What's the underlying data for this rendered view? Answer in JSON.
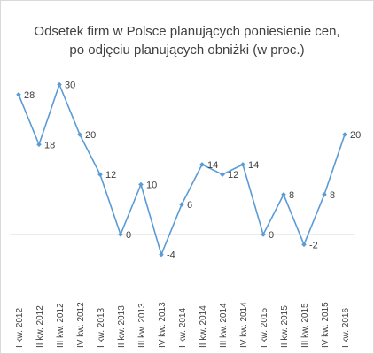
{
  "chart_data": {
    "type": "line",
    "title": "Odsetek firm w Polsce planujących poniesienie cen,",
    "subtitle": "po odjęciu planujących obniżki (w proc.)",
    "xlabel": "",
    "ylabel": "",
    "ylim": [
      -4,
      30
    ],
    "grid": false,
    "legend": "none",
    "categories": [
      "I kw. 2012",
      "II kw. 2012",
      "III kw. 2012",
      "IV kw. 2012",
      "I kw. 2013",
      "II kw. 2013",
      "III kw. 2013",
      "IV kw. 2013",
      "I kw. 2014",
      "II kw. 2014",
      "III kw. 2014",
      "IV kw. 2014",
      "I kw. 2015",
      "II kw. 2015",
      "III kw. 2015",
      "IV kw. 2015",
      "I kw. 2016"
    ],
    "series": [
      {
        "values": [
          28,
          18,
          30,
          20,
          12,
          0,
          10,
          -4,
          6,
          14,
          12,
          14,
          0,
          8,
          -2,
          8,
          20
        ]
      }
    ],
    "colors": {
      "line": "#5b9bd5",
      "zero_line": "#d9d9d9",
      "text": "#404040"
    }
  }
}
